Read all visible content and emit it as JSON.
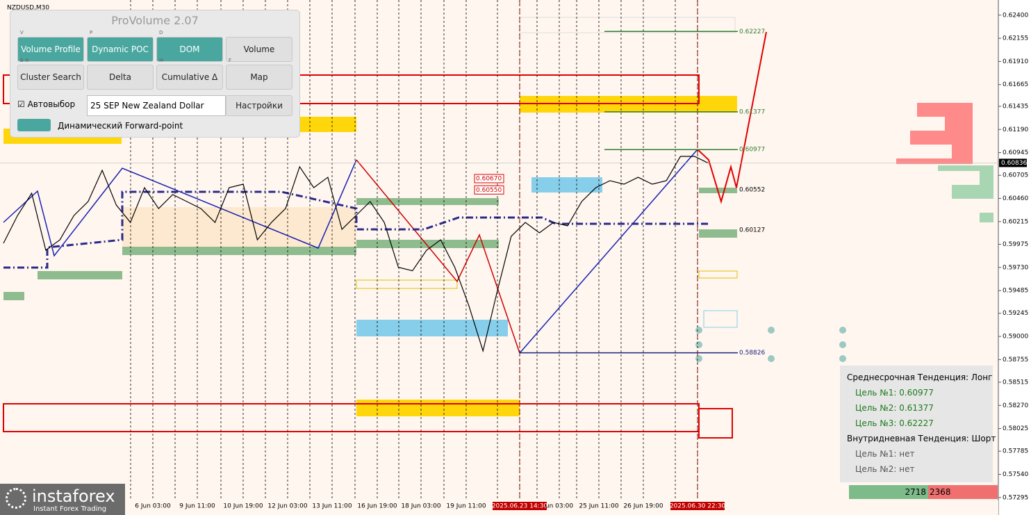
{
  "symbol": "NZDUSD,M30",
  "panel": {
    "title": "ProVolume 2.07",
    "buttons": [
      {
        "key": "V",
        "label": "Volume Profile"
      },
      {
        "key": "P",
        "label": "Dynamic POC"
      },
      {
        "key": "D",
        "label": "DOM"
      },
      {
        "label": "Volume"
      },
      {
        "key": "B N",
        "label": "Cluster Search"
      },
      {
        "label": "Delta"
      },
      {
        "key": "M",
        "label": "Cumulative Δ"
      },
      {
        "key": "F",
        "label": "Map"
      }
    ],
    "autoselect": "Автовыбор",
    "instrument": "25 SEP New Zealand Dollar",
    "settings": "Настройки",
    "forward_point": "Динамический Forward-point"
  },
  "chart_data": {
    "type": "line",
    "ylim": [
      0.5711,
      0.6256
    ],
    "yticks": [
      {
        "value": 0.624,
        "label": "0.62400"
      },
      {
        "value": 0.62155,
        "label": "0.62155"
      },
      {
        "value": 0.6191,
        "label": "0.61910"
      },
      {
        "value": 0.61665,
        "label": "0.61665"
      },
      {
        "value": 0.61435,
        "label": "0.61435"
      },
      {
        "value": 0.6119,
        "label": "0.61190"
      },
      {
        "value": 0.60945,
        "label": "0.60945"
      },
      {
        "value": 0.60705,
        "label": "0.60705"
      },
      {
        "value": 0.6046,
        "label": "0.60460"
      },
      {
        "value": 0.60215,
        "label": "0.60215"
      },
      {
        "value": 0.59975,
        "label": "0.59975"
      },
      {
        "value": 0.5973,
        "label": "0.59730"
      },
      {
        "value": 0.59485,
        "label": "0.59485"
      },
      {
        "value": 0.59245,
        "label": "0.59245"
      },
      {
        "value": 0.59,
        "label": "0.59000"
      },
      {
        "value": 0.58755,
        "label": "0.58755"
      },
      {
        "value": 0.58515,
        "label": "0.58515"
      },
      {
        "value": 0.5827,
        "label": "0.58270"
      },
      {
        "value": 0.58025,
        "label": "0.58025"
      },
      {
        "value": 0.57785,
        "label": "0.57785"
      },
      {
        "value": 0.5754,
        "label": "0.57540"
      },
      {
        "value": 0.57295,
        "label": "0.57295"
      }
    ],
    "current_price": 0.60836,
    "time_labels": [
      "6 Jun 03:00",
      "9 Jun 11:00",
      "10 Jun 19:00",
      "12 Jun 03:00",
      "13 Jun 11:00",
      "16 Jun 19:00",
      "18 Jun 03:00",
      "19 Jun 11:00",
      "2025.06.23 14:30",
      "un 03:00",
      "25 Jun 11:00",
      "26 Jun 19:00",
      "2025.06.30 22:30"
    ],
    "series": [
      {
        "name": "NZDUSD",
        "color": "#000000",
        "values": [
          0.59986,
          0.6028,
          0.60515,
          0.59912,
          0.60022,
          0.6028,
          0.60427,
          0.60758,
          0.6039,
          0.60206,
          0.60574,
          0.60353,
          0.60501,
          0.60427,
          0.60353,
          0.60206,
          0.60574,
          0.60611,
          0.60022,
          0.60206,
          0.60353,
          0.60795,
          0.60574,
          0.60684,
          0.60133,
          0.6028,
          0.60427,
          0.60206,
          0.59731,
          0.59695,
          0.59912,
          0.60022,
          0.59731,
          0.59324,
          0.58846,
          0.59471,
          0.60059,
          0.60206,
          0.60096,
          0.60206,
          0.6017,
          0.60427,
          0.60574,
          0.60648,
          0.60611,
          0.60684,
          0.60611,
          0.60648,
          0.60905,
          0.60905,
          0.60832
        ]
      }
    ],
    "levels": [
      {
        "value": 0.62227,
        "color": "#2e7d32"
      },
      {
        "value": 0.61377,
        "color": "#2e7d32"
      },
      {
        "value": 0.60977,
        "color": "#2e7d32"
      },
      {
        "value": 0.60552,
        "color": "#000000"
      },
      {
        "value": 0.60127,
        "color": "#000000"
      },
      {
        "value": 0.58826,
        "color": "#1a237e"
      }
    ],
    "box_labels": [
      {
        "value": 0.6067,
        "label": "0.60670"
      },
      {
        "value": 0.6055,
        "label": "0.60550"
      }
    ],
    "volume_counts": [
      2718,
      2368
    ]
  },
  "info_panel": {
    "mid_trend": "Среднесрочная Тенденция: Лонг",
    "mid_targets": [
      "Цель №1: 0.60977",
      "Цель №2: 0.61377",
      "Цель №3: 0.62227"
    ],
    "intraday_trend": "Внутридневная Тенденция: Шорт",
    "intraday_targets": [
      "Цель №1: нет",
      "Цель №2: нет"
    ]
  },
  "logo": {
    "name": "instaforex",
    "tagline": "Instant Forex Trading"
  }
}
